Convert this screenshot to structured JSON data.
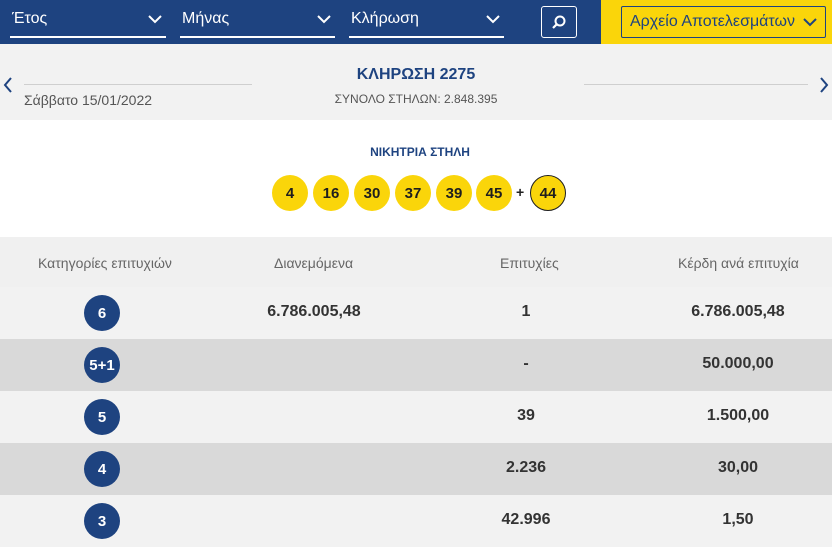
{
  "filters": {
    "year_label": "Έτος",
    "month_label": "Μήνας",
    "draw_label": "Κλήρωση",
    "archive_label": "Αρχείο Αποτελεσμάτων"
  },
  "draw": {
    "title": "ΚΛΗΡΩΣΗ 2275",
    "date": "Σάββατο 15/01/2022",
    "columns_text": "ΣΥΝΟΛΟ ΣΤΗΛΩΝ: 2.848.395"
  },
  "winning": {
    "label": "ΝΙΚΗΤΡΙΑ ΣΤΗΛΗ",
    "numbers": [
      "4",
      "16",
      "30",
      "37",
      "39",
      "45"
    ],
    "plus": "+",
    "bonus": "44"
  },
  "table": {
    "headers": [
      "Κατηγορίες επιτυχιών",
      "Διανεμόμενα",
      "Επιτυχίες",
      "Κέρδη ανά επιτυχία"
    ],
    "rows": [
      {
        "category": "6",
        "distributed": "6.786.005,48",
        "winners": "1",
        "prize": "6.786.005,48"
      },
      {
        "category": "5+1",
        "distributed": "",
        "winners": "-",
        "prize": "50.000,00"
      },
      {
        "category": "5",
        "distributed": "",
        "winners": "39",
        "prize": "1.500,00"
      },
      {
        "category": "4",
        "distributed": "",
        "winners": "2.236",
        "prize": "30,00"
      },
      {
        "category": "3",
        "distributed": "",
        "winners": "42.996",
        "prize": "1,50"
      }
    ]
  },
  "colors": {
    "brand_blue": "#1e4380",
    "brand_yellow": "#fad50a"
  }
}
